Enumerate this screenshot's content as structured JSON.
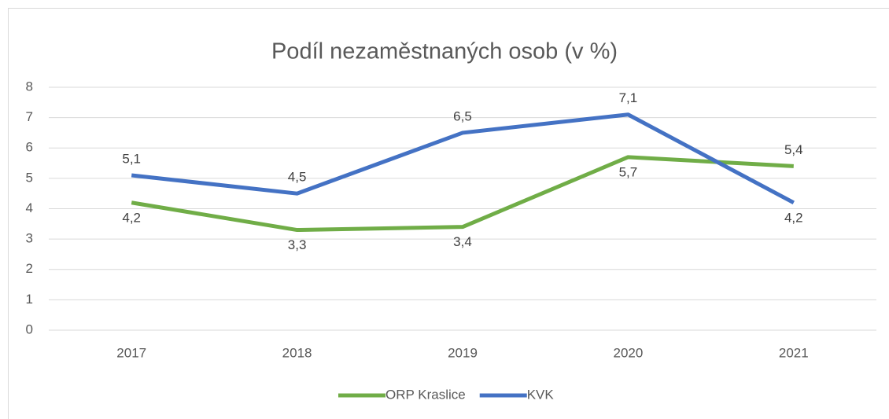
{
  "chart_data": {
    "type": "line",
    "title": "Podíl nezaměstnaných osob (v %)",
    "categories": [
      "2017",
      "2018",
      "2019",
      "2020",
      "2021"
    ],
    "series": [
      {
        "name": "ORP Kraslice",
        "color": "#70ad47",
        "values": [
          4.2,
          3.3,
          3.4,
          5.7,
          5.4
        ],
        "value_labels": [
          "4,2",
          "3,3",
          "3,4",
          "5,7",
          "5,4"
        ]
      },
      {
        "name": "KVK",
        "color": "#4472c4",
        "values": [
          5.1,
          4.5,
          6.5,
          7.1,
          4.2
        ],
        "value_labels": [
          "5,1",
          "4,5",
          "6,5",
          "7,1",
          "4,2"
        ]
      }
    ],
    "ylim": [
      0,
      8
    ],
    "yticks": [
      0,
      1,
      2,
      3,
      4,
      5,
      6,
      7,
      8
    ],
    "grid": true,
    "legend": "bottom"
  }
}
